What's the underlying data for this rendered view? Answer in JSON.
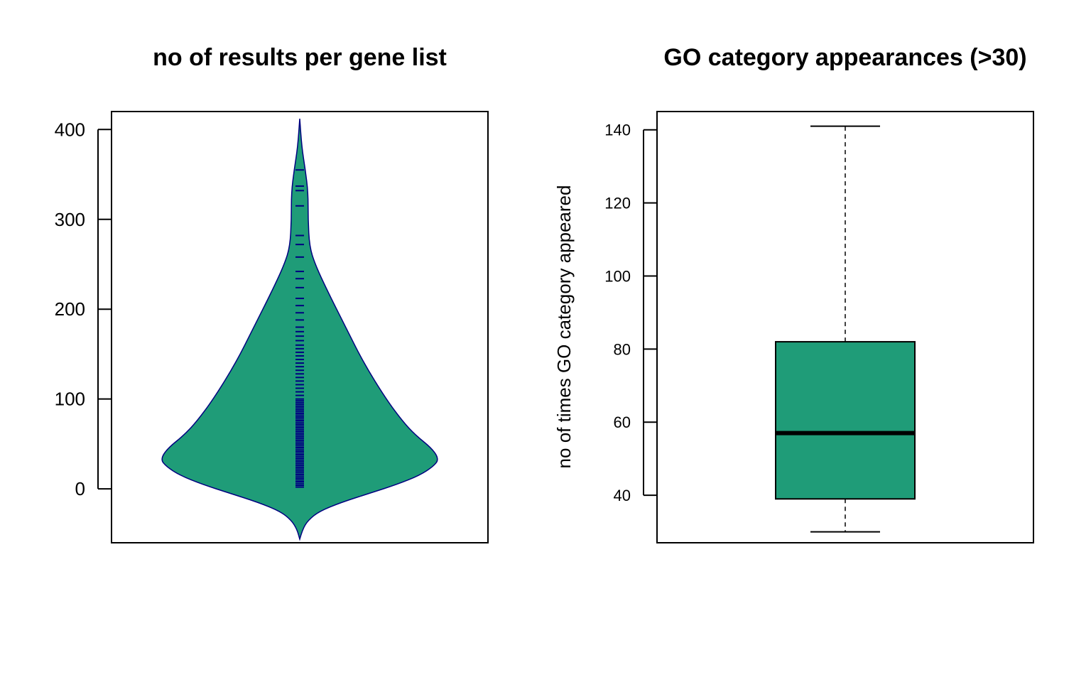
{
  "chart_data": [
    {
      "type": "violin",
      "title": "no of results per gene list",
      "xlabel": "",
      "ylabel": "",
      "ylim": [
        -60,
        420
      ],
      "yticks": [
        0,
        100,
        200,
        300,
        400
      ],
      "fill_color": "#1f9c78",
      "outline_color": "#000080",
      "rug_color": "#000080",
      "density_profile": [
        {
          "y": -56,
          "w": 0.0
        },
        {
          "y": -45,
          "w": 0.02
        },
        {
          "y": -35,
          "w": 0.06
        },
        {
          "y": -25,
          "w": 0.14
        },
        {
          "y": -15,
          "w": 0.3
        },
        {
          "y": -5,
          "w": 0.5
        },
        {
          "y": 5,
          "w": 0.7
        },
        {
          "y": 15,
          "w": 0.86
        },
        {
          "y": 25,
          "w": 0.96
        },
        {
          "y": 33,
          "w": 1.0
        },
        {
          "y": 45,
          "w": 0.95
        },
        {
          "y": 60,
          "w": 0.83
        },
        {
          "y": 75,
          "w": 0.74
        },
        {
          "y": 100,
          "w": 0.62
        },
        {
          "y": 140,
          "w": 0.46
        },
        {
          "y": 180,
          "w": 0.33
        },
        {
          "y": 220,
          "w": 0.2
        },
        {
          "y": 250,
          "w": 0.11
        },
        {
          "y": 270,
          "w": 0.07
        },
        {
          "y": 300,
          "w": 0.06
        },
        {
          "y": 330,
          "w": 0.06
        },
        {
          "y": 355,
          "w": 0.04
        },
        {
          "y": 380,
          "w": 0.015
        },
        {
          "y": 412,
          "w": 0.0
        }
      ],
      "rug_values": [
        2,
        4,
        6,
        8,
        10,
        12,
        14,
        16,
        18,
        20,
        22,
        24,
        26,
        28,
        30,
        32,
        34,
        36,
        38,
        40,
        42,
        44,
        46,
        48,
        50,
        52,
        54,
        56,
        58,
        60,
        62,
        64,
        66,
        68,
        70,
        72,
        74,
        76,
        78,
        80,
        82,
        84,
        86,
        88,
        90,
        92,
        94,
        96,
        98,
        100,
        104,
        108,
        112,
        116,
        120,
        124,
        128,
        132,
        136,
        140,
        144,
        148,
        152,
        156,
        160,
        165,
        170,
        175,
        180,
        188,
        196,
        204,
        212,
        224,
        234,
        242,
        258,
        272,
        282,
        315,
        332,
        337,
        355
      ]
    },
    {
      "type": "box",
      "title": "GO category appearances (>30)",
      "xlabel": "",
      "ylabel": "no of times GO category appeared",
      "ylim": [
        27,
        145
      ],
      "yticks": [
        40,
        60,
        80,
        100,
        120,
        140
      ],
      "fill_color": "#1f9c78",
      "stats": {
        "min": 30,
        "q1": 39,
        "median": 57,
        "q3": 82,
        "max": 141
      }
    }
  ]
}
